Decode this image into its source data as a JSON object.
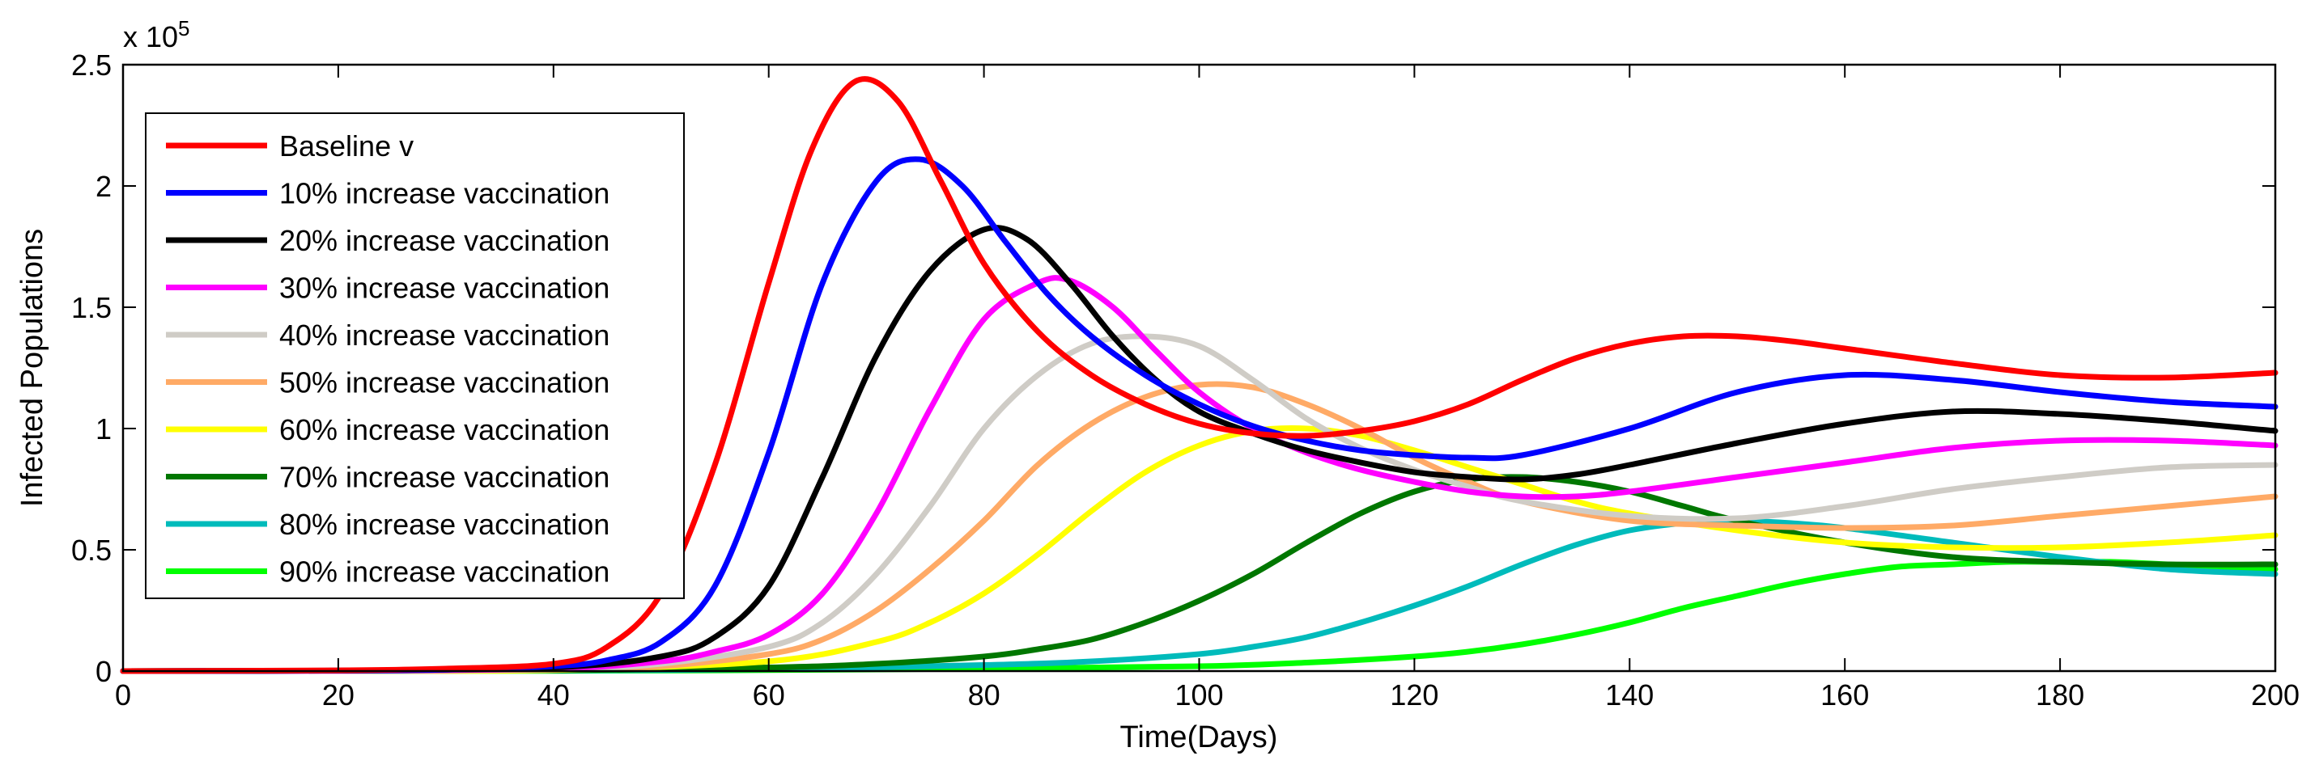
{
  "chart_data": {
    "type": "line",
    "title": "",
    "xlabel": "Time(Days)",
    "ylabel": "Infected Populations",
    "y_multiplier": {
      "base": "x 10",
      "exponent": "5"
    },
    "xlim": [
      0,
      200
    ],
    "ylim": [
      0,
      2.5
    ],
    "xticks": [
      0,
      20,
      40,
      60,
      80,
      100,
      120,
      140,
      160,
      180,
      200
    ],
    "yticks": [
      0,
      0.5,
      1,
      1.5,
      2,
      2.5
    ],
    "ytick_labels": [
      "0",
      "0.5",
      "1",
      "1.5",
      "2",
      "2.5"
    ],
    "grid": false,
    "legend_position": "top-left",
    "series": [
      {
        "name": "Baseline v",
        "color": "#ff0000",
        "x": [
          0,
          20,
          30,
          40,
          45,
          50,
          55,
          60,
          64,
          68,
          72,
          76,
          80,
          85,
          90,
          95,
          100,
          105,
          110,
          115,
          120,
          125,
          130,
          135,
          140,
          145,
          150,
          155,
          160,
          170,
          180,
          190,
          200
        ],
        "y": [
          0,
          0.003,
          0.01,
          0.03,
          0.1,
          0.32,
          0.85,
          1.6,
          2.15,
          2.43,
          2.35,
          2.02,
          1.68,
          1.4,
          1.22,
          1.1,
          1.02,
          0.98,
          0.97,
          0.99,
          1.03,
          1.1,
          1.2,
          1.29,
          1.35,
          1.38,
          1.38,
          1.36,
          1.33,
          1.27,
          1.22,
          1.21,
          1.23
        ]
      },
      {
        "name": "10%  increase vaccination",
        "color": "#0000ff",
        "x": [
          0,
          20,
          30,
          40,
          45,
          50,
          55,
          60,
          65,
          70,
          74,
          78,
          82,
          86,
          90,
          95,
          100,
          105,
          110,
          115,
          120,
          125,
          130,
          140,
          150,
          160,
          170,
          180,
          190,
          200
        ],
        "y": [
          0,
          0.002,
          0.006,
          0.02,
          0.045,
          0.12,
          0.35,
          0.9,
          1.6,
          2.02,
          2.11,
          2.0,
          1.77,
          1.55,
          1.38,
          1.22,
          1.1,
          1.01,
          0.95,
          0.91,
          0.89,
          0.88,
          0.89,
          1.0,
          1.15,
          1.22,
          1.2,
          1.15,
          1.11,
          1.09
        ]
      },
      {
        "name": "20%  increase vaccination",
        "color": "#000000",
        "x": [
          0,
          20,
          40,
          50,
          55,
          60,
          65,
          70,
          75,
          80,
          84,
          88,
          92,
          96,
          100,
          105,
          110,
          115,
          120,
          125,
          130,
          135,
          140,
          150,
          160,
          170,
          180,
          190,
          200
        ],
        "y": [
          0,
          0.002,
          0.015,
          0.06,
          0.14,
          0.35,
          0.8,
          1.3,
          1.65,
          1.82,
          1.78,
          1.6,
          1.38,
          1.2,
          1.07,
          0.98,
          0.91,
          0.86,
          0.82,
          0.8,
          0.79,
          0.81,
          0.85,
          0.94,
          1.02,
          1.07,
          1.06,
          1.03,
          0.99
        ]
      },
      {
        "name": "30%  increase vaccination",
        "color": "#ff00ff",
        "x": [
          0,
          20,
          40,
          50,
          55,
          60,
          65,
          70,
          75,
          80,
          85,
          88,
          92,
          96,
          100,
          105,
          110,
          115,
          120,
          125,
          130,
          135,
          140,
          150,
          160,
          170,
          180,
          190,
          200
        ],
        "y": [
          0,
          0.001,
          0.01,
          0.04,
          0.08,
          0.15,
          0.32,
          0.65,
          1.08,
          1.45,
          1.6,
          1.61,
          1.5,
          1.32,
          1.15,
          1.0,
          0.9,
          0.83,
          0.78,
          0.74,
          0.72,
          0.72,
          0.74,
          0.8,
          0.86,
          0.92,
          0.95,
          0.95,
          0.93
        ]
      },
      {
        "name": "40%  increase vaccination",
        "color": "#cfccc6",
        "x": [
          0,
          20,
          40,
          50,
          60,
          65,
          70,
          75,
          80,
          85,
          90,
          95,
          100,
          105,
          110,
          115,
          120,
          125,
          130,
          140,
          150,
          160,
          170,
          180,
          190,
          200
        ],
        "y": [
          0,
          0.001,
          0.008,
          0.03,
          0.1,
          0.2,
          0.4,
          0.68,
          1.0,
          1.22,
          1.35,
          1.38,
          1.34,
          1.2,
          1.04,
          0.92,
          0.83,
          0.76,
          0.7,
          0.64,
          0.63,
          0.68,
          0.75,
          0.8,
          0.84,
          0.85
        ]
      },
      {
        "name": "50%  increase vaccination",
        "color": "#ffaa66",
        "x": [
          0,
          20,
          40,
          50,
          60,
          65,
          70,
          75,
          80,
          85,
          90,
          95,
          100,
          105,
          110,
          115,
          120,
          125,
          130,
          140,
          150,
          160,
          170,
          180,
          190,
          200
        ],
        "y": [
          0,
          0.001,
          0.006,
          0.02,
          0.07,
          0.13,
          0.25,
          0.42,
          0.62,
          0.85,
          1.02,
          1.13,
          1.18,
          1.17,
          1.1,
          1.0,
          0.88,
          0.78,
          0.7,
          0.62,
          0.6,
          0.59,
          0.6,
          0.64,
          0.68,
          0.72
        ]
      },
      {
        "name": "60%  increase vaccination",
        "color": "#ffff00",
        "x": [
          0,
          20,
          40,
          60,
          70,
          75,
          80,
          85,
          90,
          95,
          100,
          105,
          110,
          115,
          120,
          125,
          130,
          135,
          140,
          150,
          160,
          170,
          180,
          190,
          200
        ],
        "y": [
          0,
          0.001,
          0.004,
          0.04,
          0.12,
          0.2,
          0.32,
          0.48,
          0.66,
          0.82,
          0.93,
          0.99,
          1.0,
          0.97,
          0.91,
          0.84,
          0.77,
          0.7,
          0.65,
          0.58,
          0.53,
          0.51,
          0.51,
          0.53,
          0.56
        ]
      },
      {
        "name": "70%  increase vaccination",
        "color": "#007700",
        "x": [
          0,
          20,
          40,
          60,
          70,
          80,
          85,
          90,
          95,
          100,
          105,
          110,
          115,
          120,
          125,
          130,
          135,
          140,
          145,
          150,
          160,
          170,
          180,
          190,
          200
        ],
        "y": [
          0,
          0.001,
          0.003,
          0.015,
          0.03,
          0.06,
          0.09,
          0.13,
          0.2,
          0.29,
          0.4,
          0.53,
          0.65,
          0.74,
          0.79,
          0.8,
          0.78,
          0.74,
          0.68,
          0.62,
          0.53,
          0.47,
          0.45,
          0.44,
          0.44
        ]
      },
      {
        "name": "80%  increase vaccination",
        "color": "#00bbbb",
        "x": [
          0,
          20,
          40,
          60,
          80,
          90,
          100,
          105,
          110,
          115,
          120,
          125,
          130,
          135,
          140,
          145,
          150,
          155,
          160,
          170,
          180,
          190,
          200
        ],
        "y": [
          0,
          0.001,
          0.002,
          0.008,
          0.025,
          0.04,
          0.07,
          0.1,
          0.14,
          0.2,
          0.27,
          0.35,
          0.44,
          0.52,
          0.58,
          0.61,
          0.62,
          0.61,
          0.59,
          0.53,
          0.47,
          0.42,
          0.4
        ]
      },
      {
        "name": "90% increase vaccination",
        "color": "#00ff00",
        "x": [
          0,
          20,
          40,
          60,
          80,
          100,
          110,
          120,
          125,
          130,
          135,
          140,
          145,
          150,
          155,
          160,
          165,
          170,
          175,
          180,
          185,
          190,
          200
        ],
        "y": [
          0,
          0.001,
          0.001,
          0.004,
          0.01,
          0.02,
          0.035,
          0.06,
          0.08,
          0.11,
          0.15,
          0.2,
          0.26,
          0.31,
          0.36,
          0.4,
          0.43,
          0.44,
          0.45,
          0.45,
          0.45,
          0.44,
          0.42
        ]
      }
    ]
  }
}
